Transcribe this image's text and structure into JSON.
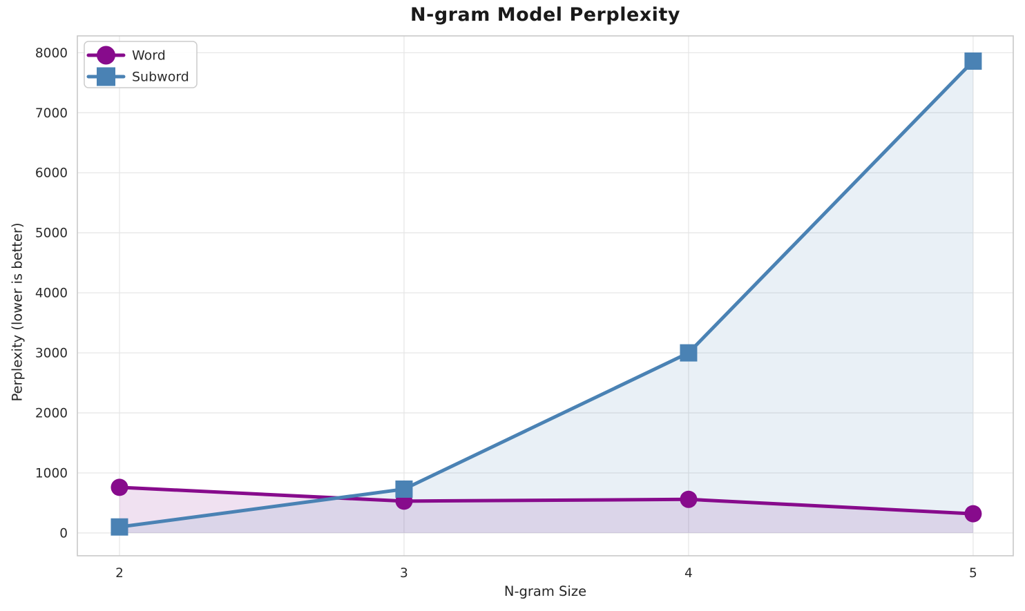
{
  "chart_data": {
    "type": "line",
    "title": "N-gram Model Perplexity",
    "xlabel": "N-gram Size",
    "ylabel": "Perplexity (lower is better)",
    "x": [
      2,
      3,
      4,
      5
    ],
    "series": [
      {
        "name": "Word",
        "values": [
          760,
          530,
          560,
          320
        ],
        "color": "#870b8c",
        "marker": "circle"
      },
      {
        "name": "Subword",
        "values": [
          100,
          730,
          3000,
          7860
        ],
        "color": "#4a82b4",
        "marker": "square"
      }
    ],
    "area_fill_to_baseline": 0,
    "fill_alpha": 0.12,
    "xticks": [
      "2",
      "3",
      "4",
      "5"
    ],
    "xtick_values": [
      2,
      3,
      4,
      5
    ],
    "yticks": [
      "0",
      "1000",
      "2000",
      "3000",
      "4000",
      "5000",
      "6000",
      "7000",
      "8000"
    ],
    "ytick_values": [
      0,
      1000,
      2000,
      3000,
      4000,
      5000,
      6000,
      7000,
      8000
    ],
    "xlim": [
      1.852,
      5.141
    ],
    "ylim": [
      -380,
      8280
    ],
    "grid": true,
    "legend_position": "upper left"
  }
}
